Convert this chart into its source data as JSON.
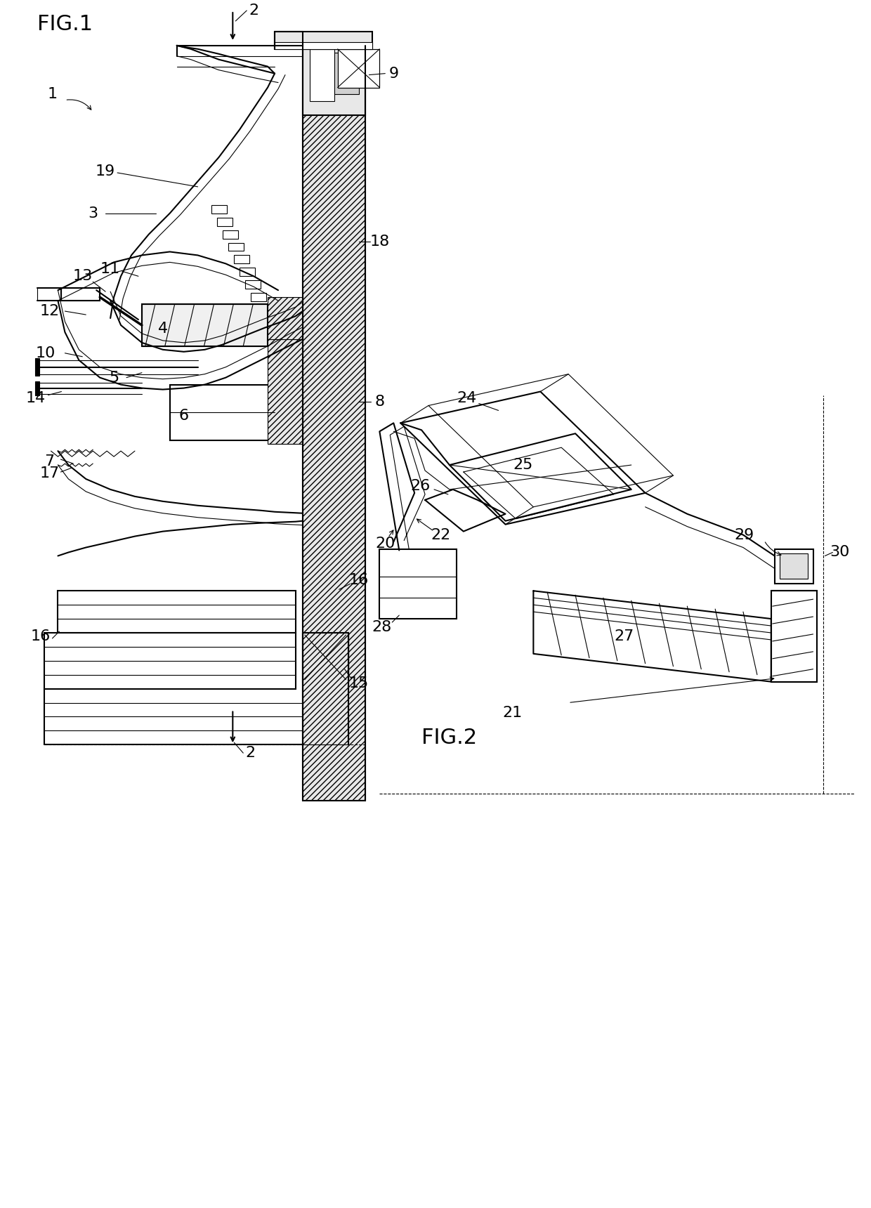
{
  "fig_width": 12.4,
  "fig_height": 17.2,
  "bg_color": "#ffffff",
  "line_color": "#000000",
  "lw_main": 1.5,
  "lw_thin": 0.8,
  "lw_thick": 2.5,
  "fig1_label": "FIG.1",
  "fig2_label": "FIG.2",
  "label_fontsize": 16,
  "fig_label_fontsize": 22
}
